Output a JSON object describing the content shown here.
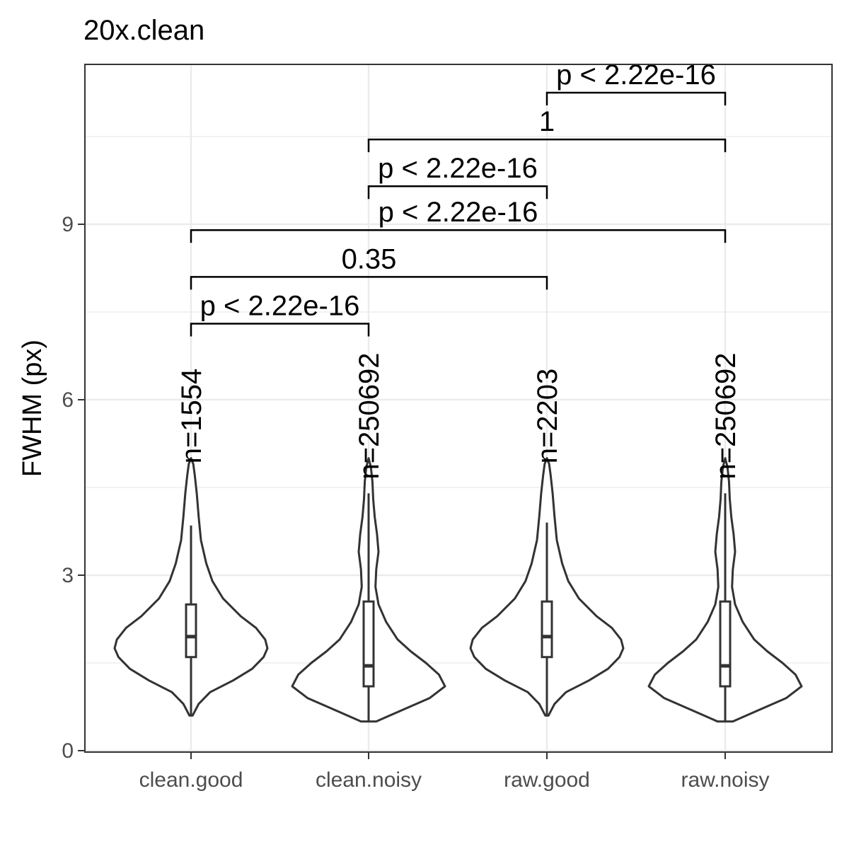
{
  "chart_data": {
    "type": "violin",
    "title": "20x.clean",
    "xlabel": "",
    "ylabel": "FWHM (px)",
    "ylim": [
      0,
      11.8
    ],
    "yticks": [
      0,
      3,
      6,
      9
    ],
    "grid": true,
    "colors": {
      "outline": "#333333",
      "grid": "#ebebeb",
      "panel_border": "#333333",
      "text": "#000000",
      "tick_text": "#4d4d4d"
    },
    "categories": [
      "clean.good",
      "clean.noisy",
      "raw.good",
      "raw.noisy"
    ],
    "counts": [
      "n=1554",
      "n=250692",
      "n=2203",
      "n=250692"
    ],
    "boxes": [
      {
        "q1": 1.6,
        "median": 1.95,
        "q3": 2.5,
        "whisker_low": 0.6,
        "whisker_high": 3.85
      },
      {
        "q1": 1.1,
        "median": 1.45,
        "q3": 2.55,
        "whisker_low": 0.5,
        "whisker_high": 4.4
      },
      {
        "q1": 1.6,
        "median": 1.95,
        "q3": 2.55,
        "whisker_low": 0.6,
        "whisker_high": 3.9
      },
      {
        "q1": 1.1,
        "median": 1.45,
        "q3": 2.55,
        "whisker_low": 0.5,
        "whisker_high": 4.4
      }
    ],
    "violins": [
      {
        "min": 0.6,
        "max": 5.0,
        "profile": [
          [
            0.6,
            0.02
          ],
          [
            0.8,
            0.1
          ],
          [
            1.0,
            0.25
          ],
          [
            1.2,
            0.55
          ],
          [
            1.4,
            0.8
          ],
          [
            1.6,
            0.95
          ],
          [
            1.75,
            1.0
          ],
          [
            1.9,
            0.97
          ],
          [
            2.1,
            0.85
          ],
          [
            2.3,
            0.65
          ],
          [
            2.6,
            0.42
          ],
          [
            2.9,
            0.28
          ],
          [
            3.2,
            0.2
          ],
          [
            3.6,
            0.13
          ],
          [
            4.0,
            0.1
          ],
          [
            4.4,
            0.075
          ],
          [
            4.7,
            0.05
          ],
          [
            4.9,
            0.03
          ],
          [
            5.0,
            0.0
          ]
        ]
      },
      {
        "min": 0.5,
        "max": 5.0,
        "profile": [
          [
            0.5,
            0.1
          ],
          [
            0.7,
            0.45
          ],
          [
            0.9,
            0.8
          ],
          [
            1.1,
            1.0
          ],
          [
            1.3,
            0.92
          ],
          [
            1.5,
            0.75
          ],
          [
            1.7,
            0.55
          ],
          [
            1.9,
            0.38
          ],
          [
            2.2,
            0.23
          ],
          [
            2.5,
            0.13
          ],
          [
            2.8,
            0.09
          ],
          [
            3.1,
            0.1
          ],
          [
            3.4,
            0.13
          ],
          [
            3.7,
            0.11
          ],
          [
            4.0,
            0.08
          ],
          [
            4.3,
            0.06
          ],
          [
            4.6,
            0.05
          ],
          [
            4.85,
            0.03
          ],
          [
            5.0,
            0.0
          ]
        ]
      },
      {
        "min": 0.6,
        "max": 5.0,
        "profile": [
          [
            0.6,
            0.02
          ],
          [
            0.8,
            0.1
          ],
          [
            1.0,
            0.25
          ],
          [
            1.2,
            0.55
          ],
          [
            1.4,
            0.8
          ],
          [
            1.6,
            0.95
          ],
          [
            1.75,
            1.0
          ],
          [
            1.9,
            0.97
          ],
          [
            2.1,
            0.85
          ],
          [
            2.3,
            0.65
          ],
          [
            2.6,
            0.42
          ],
          [
            2.9,
            0.28
          ],
          [
            3.2,
            0.2
          ],
          [
            3.6,
            0.13
          ],
          [
            4.0,
            0.1
          ],
          [
            4.4,
            0.075
          ],
          [
            4.7,
            0.05
          ],
          [
            4.9,
            0.03
          ],
          [
            5.0,
            0.0
          ]
        ]
      },
      {
        "min": 0.5,
        "max": 5.0,
        "profile": [
          [
            0.5,
            0.1
          ],
          [
            0.7,
            0.45
          ],
          [
            0.9,
            0.8
          ],
          [
            1.1,
            1.0
          ],
          [
            1.3,
            0.92
          ],
          [
            1.5,
            0.75
          ],
          [
            1.7,
            0.55
          ],
          [
            1.9,
            0.38
          ],
          [
            2.2,
            0.23
          ],
          [
            2.5,
            0.13
          ],
          [
            2.8,
            0.09
          ],
          [
            3.1,
            0.1
          ],
          [
            3.4,
            0.13
          ],
          [
            3.7,
            0.11
          ],
          [
            4.0,
            0.08
          ],
          [
            4.3,
            0.06
          ],
          [
            4.6,
            0.05
          ],
          [
            4.85,
            0.03
          ],
          [
            5.0,
            0.0
          ]
        ]
      }
    ],
    "comparisons": [
      {
        "from": 0,
        "to": 1,
        "y": 7.3,
        "label": "p < 2.22e-16"
      },
      {
        "from": 0,
        "to": 2,
        "y": 8.1,
        "label": "0.35"
      },
      {
        "from": 0,
        "to": 3,
        "y": 8.9,
        "label": "p < 2.22e-16"
      },
      {
        "from": 1,
        "to": 2,
        "y": 9.65,
        "label": "p < 2.22e-16"
      },
      {
        "from": 1,
        "to": 3,
        "y": 10.45,
        "label": "1"
      },
      {
        "from": 2,
        "to": 3,
        "y": 11.25,
        "label": "p < 2.22e-16"
      }
    ]
  }
}
